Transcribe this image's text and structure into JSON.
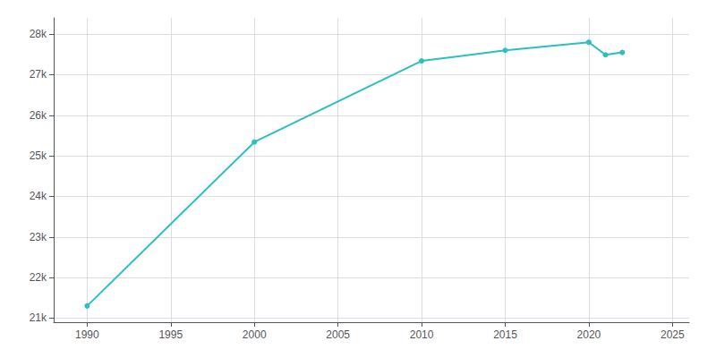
{
  "chart_data": {
    "type": "line",
    "x": [
      1990,
      2000,
      2010,
      2015,
      2020,
      2021,
      2022
    ],
    "values": [
      21300,
      25340,
      27340,
      27600,
      27800,
      27490,
      27550
    ],
    "color": "#2bbfbf",
    "marker": "circle",
    "xlim": [
      1988,
      2026
    ],
    "ylim": [
      20900,
      28400
    ],
    "xticks": [
      1990,
      1995,
      2000,
      2005,
      2010,
      2015,
      2020,
      2025
    ],
    "yticks": [
      {
        "value": 21000,
        "label": "21k"
      },
      {
        "value": 22000,
        "label": "22k"
      },
      {
        "value": 23000,
        "label": "23k"
      },
      {
        "value": 24000,
        "label": "24k"
      },
      {
        "value": 25000,
        "label": "25k"
      },
      {
        "value": 26000,
        "label": "26k"
      },
      {
        "value": 27000,
        "label": "27k"
      },
      {
        "value": 28000,
        "label": "28k"
      }
    ],
    "grid": true
  }
}
